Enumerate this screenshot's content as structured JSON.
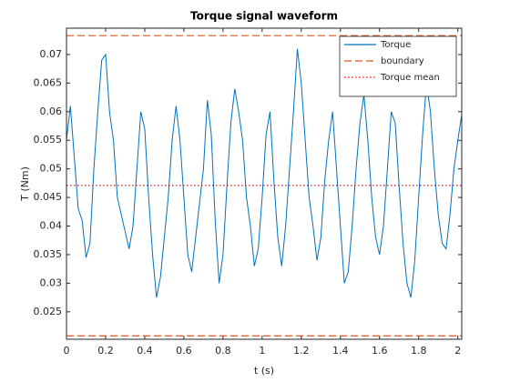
{
  "chart_data": {
    "type": "line",
    "title": "Torque signal waveform",
    "xlabel": "t (s)",
    "ylabel": "T (Nm)",
    "xlim": [
      0,
      2.02
    ],
    "ylim": [
      0.0202,
      0.0746
    ],
    "xticks": [
      0,
      0.2,
      0.4,
      0.6,
      0.8,
      1,
      1.2,
      1.4,
      1.6,
      1.8,
      2
    ],
    "yticks": [
      0.025,
      0.03,
      0.035,
      0.04,
      0.045,
      0.05,
      0.055,
      0.06,
      0.065,
      0.07
    ],
    "legend": "northeast",
    "series": [
      {
        "name": "Torque",
        "color": "#0072bd",
        "style": "solid",
        "x": [
          0,
          0.02,
          0.04,
          0.06,
          0.08,
          0.1,
          0.12,
          0.14,
          0.16,
          0.18,
          0.2,
          0.22,
          0.24,
          0.26,
          0.28,
          0.3,
          0.32,
          0.34,
          0.36,
          0.38,
          0.4,
          0.42,
          0.44,
          0.46,
          0.48,
          0.5,
          0.52,
          0.54,
          0.56,
          0.58,
          0.6,
          0.62,
          0.64,
          0.66,
          0.68,
          0.7,
          0.72,
          0.74,
          0.76,
          0.78,
          0.8,
          0.82,
          0.84,
          0.86,
          0.88,
          0.9,
          0.92,
          0.94,
          0.96,
          0.98,
          1,
          1.02,
          1.04,
          1.06,
          1.08,
          1.1,
          1.12,
          1.14,
          1.16,
          1.18,
          1.2,
          1.22,
          1.24,
          1.26,
          1.28,
          1.3,
          1.32,
          1.34,
          1.36,
          1.38,
          1.4,
          1.42,
          1.44,
          1.46,
          1.48,
          1.5,
          1.52,
          1.54,
          1.56,
          1.58,
          1.6,
          1.62,
          1.64,
          1.66,
          1.68,
          1.7,
          1.72,
          1.74,
          1.76,
          1.78,
          1.8,
          1.82,
          1.84,
          1.86,
          1.88,
          1.9,
          1.92,
          1.94,
          1.96,
          1.98,
          2,
          2.02
        ],
        "values": [
          0.055,
          0.061,
          0.052,
          0.043,
          0.041,
          0.0345,
          0.037,
          0.05,
          0.06,
          0.069,
          0.07,
          0.06,
          0.055,
          0.045,
          0.042,
          0.039,
          0.036,
          0.04,
          0.05,
          0.06,
          0.057,
          0.045,
          0.035,
          0.0275,
          0.031,
          0.038,
          0.045,
          0.055,
          0.061,
          0.055,
          0.045,
          0.035,
          0.032,
          0.038,
          0.044,
          0.05,
          0.062,
          0.056,
          0.041,
          0.03,
          0.035,
          0.047,
          0.058,
          0.064,
          0.06,
          0.055,
          0.045,
          0.04,
          0.033,
          0.036,
          0.045,
          0.056,
          0.06,
          0.048,
          0.038,
          0.033,
          0.04,
          0.05,
          0.06,
          0.071,
          0.065,
          0.055,
          0.045,
          0.04,
          0.034,
          0.038,
          0.048,
          0.055,
          0.06,
          0.05,
          0.04,
          0.03,
          0.032,
          0.04,
          0.05,
          0.058,
          0.063,
          0.055,
          0.045,
          0.038,
          0.035,
          0.04,
          0.05,
          0.06,
          0.058,
          0.047,
          0.037,
          0.03,
          0.0275,
          0.034,
          0.045,
          0.056,
          0.065,
          0.06,
          0.05,
          0.042,
          0.037,
          0.036,
          0.042,
          0.05,
          0.055,
          0.0595
        ]
      },
      {
        "name": "boundary",
        "color": "#d95319",
        "style": "dashed",
        "values": [
          0.0733,
          0.0208
        ]
      },
      {
        "name": "Torque mean",
        "color": "#ff0000",
        "style": "dotted",
        "values": [
          0.0471
        ]
      }
    ]
  }
}
